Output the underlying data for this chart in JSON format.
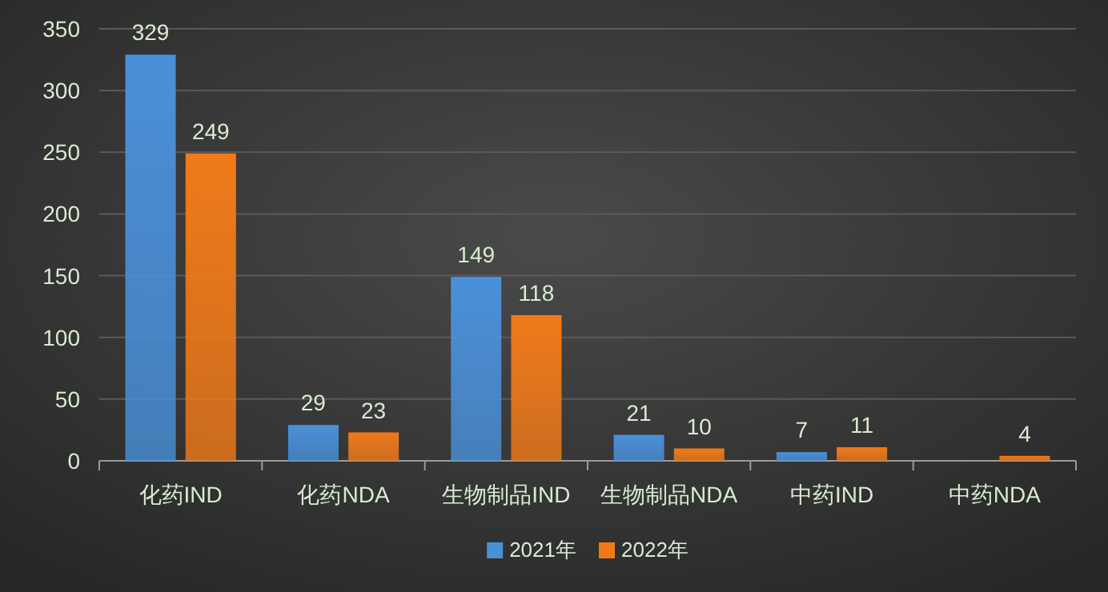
{
  "chart_data": {
    "type": "bar",
    "categories": [
      "化药IND",
      "化药NDA",
      "生物制品IND",
      "生物制品NDA",
      "中药IND",
      "中药NDA"
    ],
    "series": [
      {
        "name": "2021年",
        "color": "#4a90d9",
        "values": [
          329,
          29,
          149,
          21,
          7,
          null
        ]
      },
      {
        "name": "2022年",
        "color": "#f07a1a",
        "values": [
          249,
          23,
          118,
          10,
          11,
          4
        ]
      }
    ],
    "ylim": [
      0,
      350
    ],
    "yticks": [
      0,
      50,
      100,
      150,
      200,
      250,
      300,
      350
    ],
    "grid": "y",
    "legend": "bottom",
    "data_labels": true
  }
}
